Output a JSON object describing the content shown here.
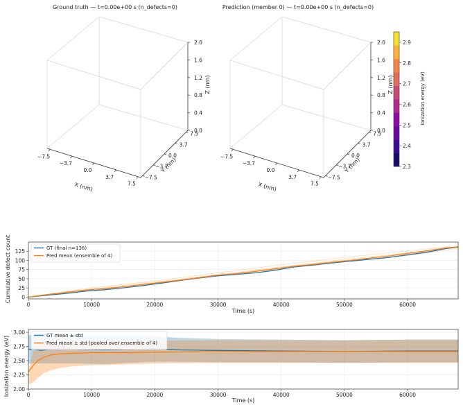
{
  "panels3d": [
    {
      "title": "Ground truth — t=0.00e+00 s (n_defects=0)",
      "xlabel": "X (nm)",
      "ylabel": "Y (nm)",
      "zlabel": "Z (nm)",
      "xticks": [
        "−7.5",
        "−3.7",
        "0.0",
        "3.7",
        "7.5"
      ],
      "yticks": [
        "−7.5",
        "−3.7",
        "0.0",
        "3.7",
        "7.5"
      ],
      "zticks": [
        "0.0",
        "0.4",
        "0.8",
        "1.2",
        "1.6",
        "2.0"
      ]
    },
    {
      "title": "Prediction (member 0) — t=0.00e+00 s (n_defects=0)",
      "xlabel": "X (nm)",
      "ylabel": "Y (nm)",
      "zlabel": "Z (nm)",
      "xticks": [
        "−7.5",
        "−3.7",
        "0.0",
        "3.7",
        "7.5"
      ],
      "yticks": [
        "−7.5",
        "−3.7",
        "0.0",
        "3.7",
        "7.5"
      ],
      "zticks": [
        "0.0",
        "0.4",
        "0.8",
        "1.2",
        "1.6",
        "2.0"
      ]
    }
  ],
  "colorbar": {
    "label": "Ionization energy (eV)",
    "ticks": [
      "2.3",
      "2.4",
      "2.5",
      "2.6",
      "2.7",
      "2.8",
      "2.9"
    ],
    "range": [
      2.3,
      2.95
    ],
    "colors": [
      "#1a0a6a",
      "#3d0a93",
      "#6a06a4",
      "#8d0ca3",
      "#b02a8f",
      "#cc4778",
      "#e36b5a",
      "#f2894b",
      "#fbb33a",
      "#f8df33"
    ]
  },
  "chart_data": [
    {
      "type": "line",
      "ylabel": "Cumulative defect count",
      "xlabel": "Time (s)",
      "xlim": [
        0,
        68000
      ],
      "ylim": [
        -5,
        150
      ],
      "xticks": [
        "0",
        "10000",
        "20000",
        "30000",
        "40000",
        "50000",
        "60000"
      ],
      "yticks": [
        "0",
        "25",
        "50",
        "75",
        "100",
        "125"
      ],
      "grid": true,
      "legend_position": "top-left",
      "series": [
        {
          "name": "GT (final n=136)",
          "color": "#1f77b4",
          "x": [
            0,
            3000,
            6000,
            9000,
            12000,
            15000,
            18000,
            21000,
            24000,
            27000,
            30000,
            33000,
            36000,
            39000,
            42000,
            45000,
            48000,
            51000,
            54000,
            57000,
            60000,
            63000,
            66000,
            68000
          ],
          "y": [
            0,
            5,
            10,
            16,
            20,
            25,
            31,
            38,
            45,
            52,
            58,
            62,
            66,
            73,
            82,
            87,
            93,
            98,
            103,
            108,
            115,
            122,
            132,
            136
          ]
        },
        {
          "name": "Pred mean (ensemble of 4)",
          "color": "#ff7f0e",
          "x": [
            0,
            3000,
            6000,
            9000,
            12000,
            15000,
            18000,
            21000,
            24000,
            27000,
            30000,
            33000,
            36000,
            39000,
            42000,
            45000,
            48000,
            51000,
            54000,
            57000,
            60000,
            63000,
            66000,
            68000
          ],
          "y": [
            0,
            7,
            13,
            19,
            23,
            28,
            34,
            40,
            46,
            53,
            60,
            64,
            70,
            77,
            84,
            89,
            95,
            100,
            106,
            112,
            119,
            126,
            134,
            137
          ]
        }
      ],
      "member_lines": [
        {
          "x": [
            0,
            10000,
            20000,
            30000,
            40000,
            50000,
            60000,
            68000
          ],
          "y": [
            0,
            25,
            44,
            66,
            88,
            108,
            126,
            140
          ]
        },
        {
          "x": [
            0,
            10000,
            20000,
            30000,
            40000,
            50000,
            60000,
            68000
          ],
          "y": [
            0,
            18,
            37,
            57,
            78,
            97,
            113,
            133
          ]
        },
        {
          "x": [
            0,
            10000,
            20000,
            30000,
            40000,
            50000,
            60000,
            68000
          ],
          "y": [
            0,
            22,
            41,
            61,
            82,
            103,
            120,
            138
          ]
        },
        {
          "x": [
            0,
            10000,
            20000,
            30000,
            40000,
            50000,
            60000,
            68000
          ],
          "y": [
            0,
            20,
            39,
            59,
            80,
            100,
            117,
            136
          ]
        }
      ]
    },
    {
      "type": "line",
      "ylabel": "Ionization energy (eV)",
      "xlabel": "Time (s)",
      "xlim": [
        0,
        68000
      ],
      "ylim": [
        2.0,
        3.05
      ],
      "xticks": [
        "0",
        "10000",
        "20000",
        "30000",
        "40000",
        "50000",
        "60000"
      ],
      "yticks": [
        "2.00",
        "2.25",
        "2.50",
        "2.75",
        "3.00"
      ],
      "grid": true,
      "legend_position": "top-left",
      "series": [
        {
          "name": "GT mean ± std",
          "color": "#1f77b4",
          "x": [
            0,
            1000,
            2000,
            3000,
            5000,
            8000,
            12000,
            16000,
            20000,
            24000,
            30000,
            40000,
            50000,
            60000,
            68000
          ],
          "y": [
            2.7,
            2.7,
            2.68,
            2.7,
            2.71,
            2.7,
            2.69,
            2.7,
            2.71,
            2.69,
            2.68,
            2.67,
            2.66,
            2.67,
            2.67
          ],
          "std_upper": [
            2.95,
            2.95,
            2.96,
            2.95,
            2.95,
            2.95,
            2.95,
            2.94,
            2.93,
            2.9,
            2.88,
            2.87,
            2.86,
            2.87,
            2.87
          ],
          "std_lower": [
            2.45,
            2.45,
            2.45,
            2.45,
            2.45,
            2.45,
            2.44,
            2.46,
            2.48,
            2.48,
            2.47,
            2.47,
            2.46,
            2.47,
            2.47
          ]
        },
        {
          "name": "Pred mean ± std (pooled over ensemble of 4)",
          "color": "#ff7f0e",
          "x": [
            0,
            800,
            1500,
            2500,
            3500,
            5000,
            7000,
            10000,
            15000,
            20000,
            30000,
            40000,
            50000,
            60000,
            68000
          ],
          "y": [
            2.3,
            2.42,
            2.5,
            2.56,
            2.6,
            2.62,
            2.63,
            2.64,
            2.64,
            2.65,
            2.66,
            2.66,
            2.66,
            2.66,
            2.66
          ],
          "std_upper": [
            2.32,
            2.7,
            2.85,
            2.85,
            2.84,
            2.83,
            2.85,
            2.84,
            2.85,
            2.85,
            2.86,
            2.86,
            2.86,
            2.87,
            2.87
          ],
          "std_lower": [
            2.08,
            2.12,
            2.2,
            2.28,
            2.33,
            2.37,
            2.4,
            2.42,
            2.43,
            2.45,
            2.46,
            2.46,
            2.46,
            2.46,
            2.46
          ]
        }
      ]
    }
  ]
}
